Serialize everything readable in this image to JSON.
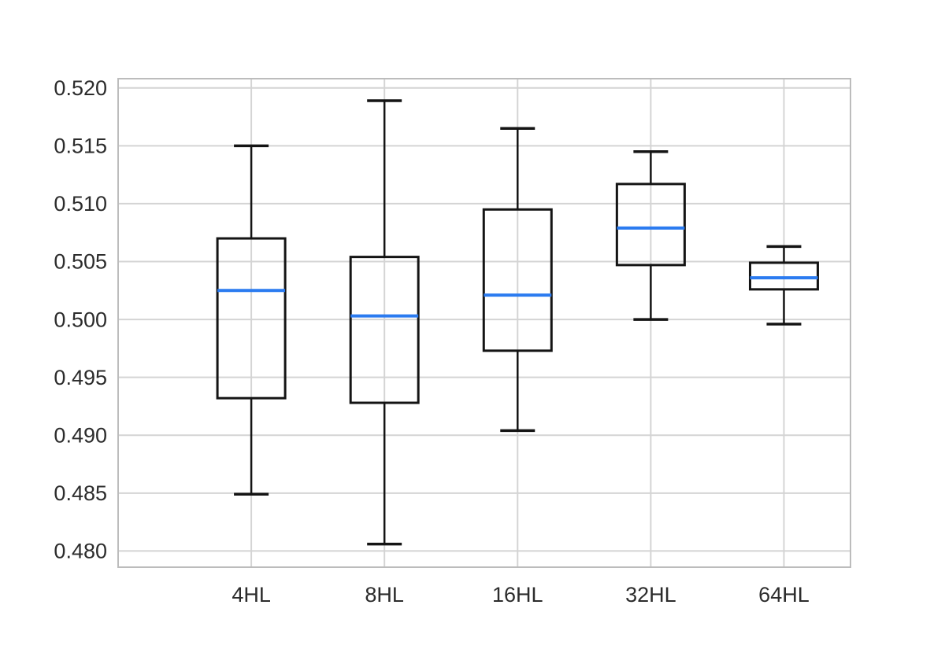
{
  "chart_data": {
    "type": "box",
    "title": "",
    "xlabel": "",
    "ylabel": "",
    "categories": [
      "4HL",
      "8HL",
      "16HL",
      "32HL",
      "64HL"
    ],
    "series": [
      {
        "category": "4HL",
        "whisker_low": 0.4849,
        "q1": 0.4932,
        "median": 0.5025,
        "q3": 0.507,
        "whisker_high": 0.515
      },
      {
        "category": "8HL",
        "whisker_low": 0.4806,
        "q1": 0.4928,
        "median": 0.5003,
        "q3": 0.5054,
        "whisker_high": 0.5189
      },
      {
        "category": "16HL",
        "whisker_low": 0.4904,
        "q1": 0.4973,
        "median": 0.5021,
        "q3": 0.5095,
        "whisker_high": 0.5165
      },
      {
        "category": "32HL",
        "whisker_low": 0.5,
        "q1": 0.5047,
        "median": 0.5079,
        "q3": 0.5117,
        "whisker_high": 0.5145
      },
      {
        "category": "64HL",
        "whisker_low": 0.4996,
        "q1": 0.5026,
        "median": 0.5036,
        "q3": 0.5049,
        "whisker_high": 0.5063
      }
    ],
    "ylim": [
      0.4786,
      0.5208
    ],
    "yticks": [
      0.48,
      0.485,
      0.49,
      0.495,
      0.5,
      0.505,
      0.51,
      0.515,
      0.52
    ],
    "ytick_labels": [
      "0.480",
      "0.485",
      "0.490",
      "0.495",
      "0.500",
      "0.505",
      "0.510",
      "0.515",
      "0.520"
    ],
    "grid": true,
    "legend": "none",
    "colors": {
      "median_line": "#2b7bf0",
      "box_border": "#141414",
      "whisker": "#141414",
      "gridline": "#d4d4d4",
      "frame": "#bcbcbc",
      "tick_text": "#2c2c2c",
      "background": "#ffffff"
    }
  }
}
